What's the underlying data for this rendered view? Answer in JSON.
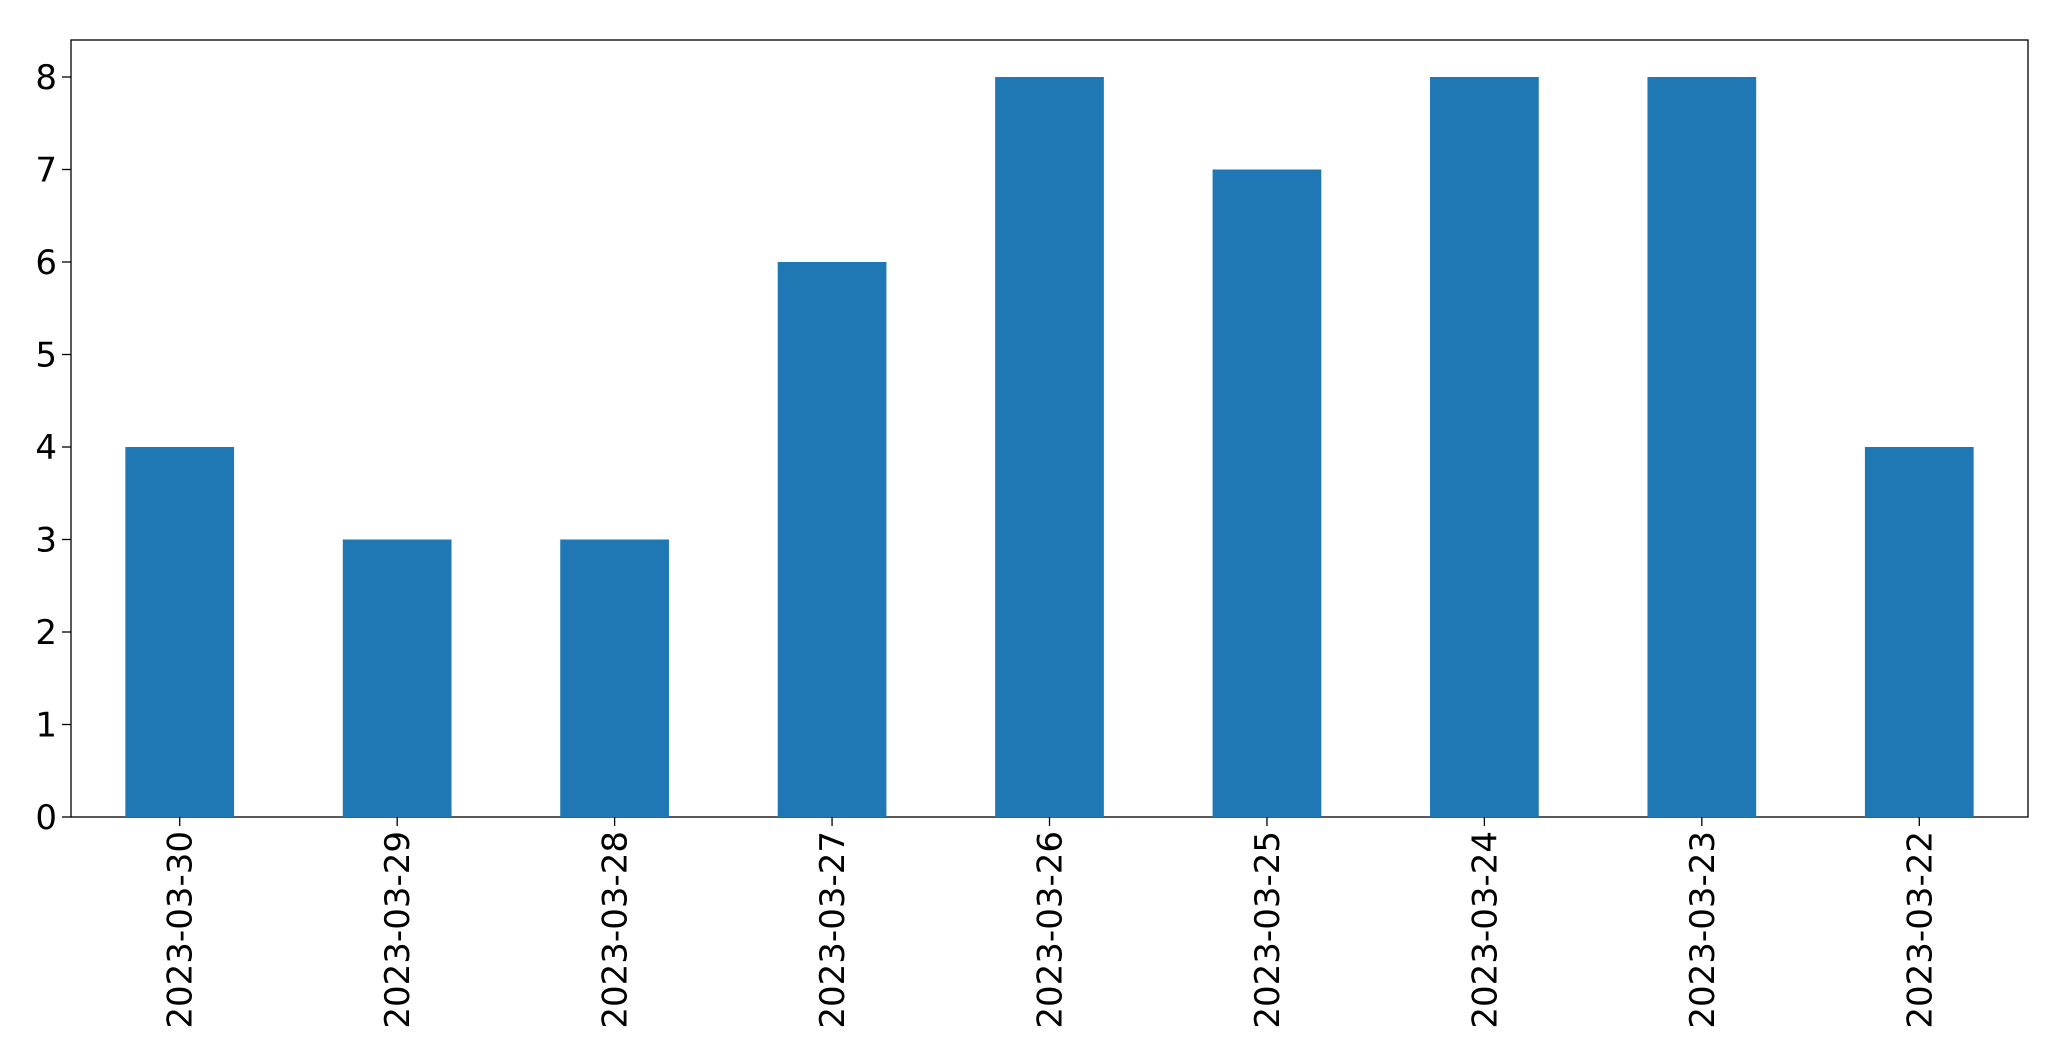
{
  "chart_data": {
    "type": "bar",
    "categories": [
      "2023-03-30",
      "2023-03-29",
      "2023-03-28",
      "2023-03-27",
      "2023-03-26",
      "2023-03-25",
      "2023-03-24",
      "2023-03-23",
      "2023-03-22"
    ],
    "values": [
      4,
      3,
      3,
      6,
      8,
      7,
      8,
      8,
      4
    ],
    "color": "#1f77b4",
    "ylim": [
      0,
      8.4
    ],
    "yticks": [
      0,
      1,
      2,
      3,
      4,
      5,
      6,
      7,
      8
    ],
    "grid": false
  }
}
